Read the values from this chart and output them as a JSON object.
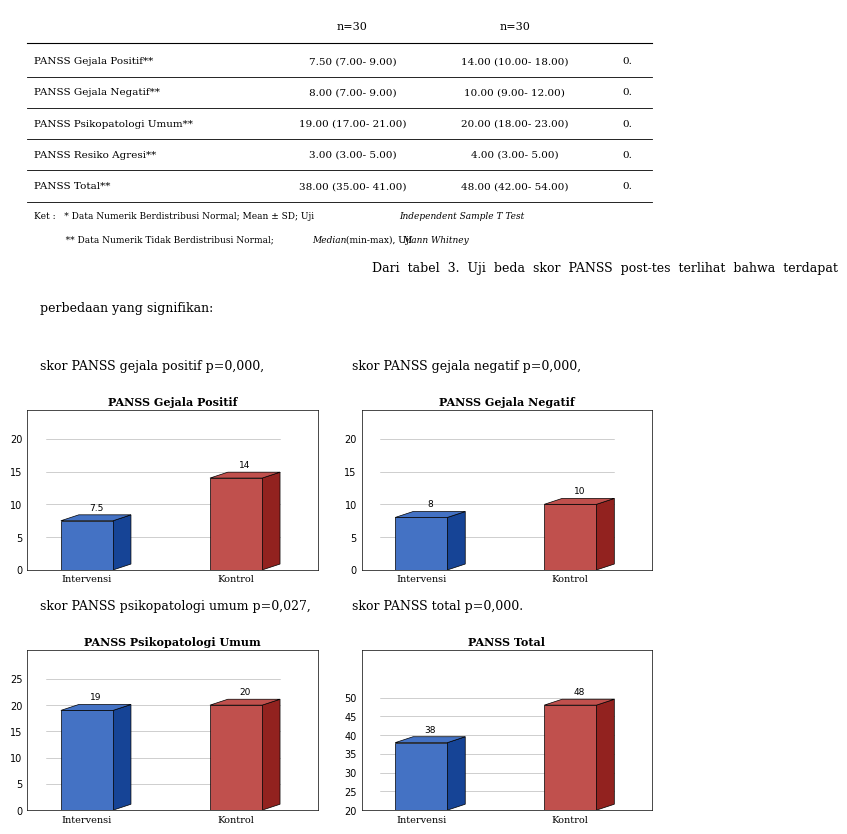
{
  "table_col1": [
    "PANSS Gejala Positif**",
    "PANSS Gejala Negatif**",
    "PANSS Psikopatologi Umum**",
    "PANSS Resiko Agresi**",
    "PANSS Total**"
  ],
  "table_col2": [
    "7.50 (7.00- 9.00)",
    "8.00 (7.00- 9.00)",
    "19.00 (17.00- 21.00)",
    "3.00 (3.00- 5.00)",
    "38.00 (35.00- 41.00)"
  ],
  "table_col3": [
    "14.00 (10.00- 18.00)",
    "10.00 (9.00- 12.00)",
    "20.00 (18.00- 23.00)",
    "4.00 (3.00- 5.00)",
    "48.00 (42.00- 54.00)"
  ],
  "table_col4": [
    "0.",
    "0.",
    "0.",
    "0.",
    "0."
  ],
  "paragraph1": "        Dari  tabel  3.  Uji  beda  skor  PANSS  post-tes  terlihat  bahwa  terdapat",
  "paragraph2": "perbedaan yang signifikan:",
  "label_positif": "skor PANSS gejala positif p=0,000,",
  "label_negatif": "skor PANSS gejala negatif p=0,000,",
  "label_psiko": "skor PANSS psikopatologi umum p=0,027,",
  "label_total": "skor PANSS total p=0,000.",
  "chart1_title": "PANSS Gejala Positif",
  "chart1_intervensi": 7.5,
  "chart1_kontrol": 14.0,
  "chart1_ylim": [
    0,
    20
  ],
  "chart1_yticks": [
    0,
    5,
    10,
    15,
    20
  ],
  "chart2_title": "PANSS Gejala Negatif",
  "chart2_intervensi": 8.0,
  "chart2_kontrol": 10.0,
  "chart2_ylim": [
    0,
    20
  ],
  "chart2_yticks": [
    0,
    5,
    10,
    15,
    20
  ],
  "chart3_title": "PANSS Psikopatologi Umum",
  "chart3_intervensi": 19.0,
  "chart3_kontrol": 20.0,
  "chart3_ylim": [
    0,
    25
  ],
  "chart3_yticks": [
    0,
    5,
    10,
    15,
    20,
    25
  ],
  "chart4_title": "PANSS Total",
  "chart4_intervensi": 38.0,
  "chart4_kontrol": 48.0,
  "chart4_ylim": [
    20,
    55
  ],
  "chart4_yticks": [
    20,
    25,
    30,
    35,
    40,
    45,
    50
  ],
  "bar_color_intervensi": "#4472C4",
  "bar_color_kontrol": "#C0504D",
  "x_labels": [
    "Intervensi",
    "Kontrol"
  ],
  "chart_bg": "#FFFFFF",
  "label1_intervensi": "7.5",
  "label1_kontrol": "14",
  "label2_intervensi": "8",
  "label2_kontrol": "10",
  "label3_intervensi": "19",
  "label3_kontrol": "20",
  "label4_intervensi": "38",
  "label4_kontrol": "48"
}
